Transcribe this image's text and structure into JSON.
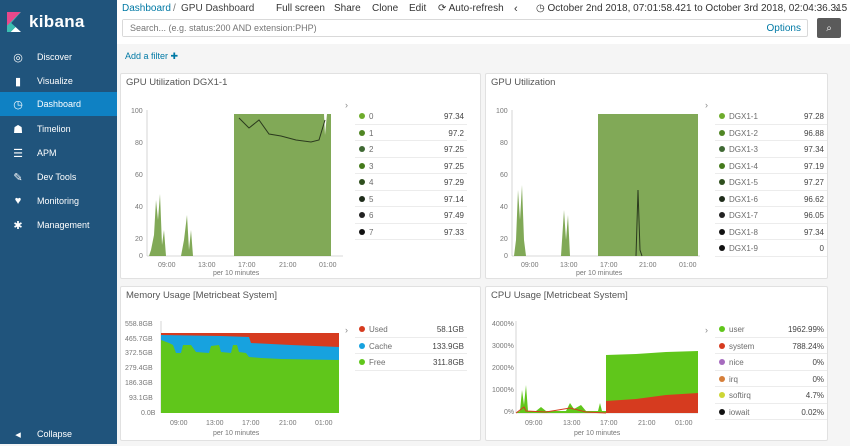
{
  "app": {
    "name": "kibana"
  },
  "sidebar": {
    "items": [
      {
        "label": "Discover",
        "icon": "compass-icon",
        "glyph": "◎"
      },
      {
        "label": "Visualize",
        "icon": "bar-chart-icon",
        "glyph": "▮"
      },
      {
        "label": "Dashboard",
        "icon": "dashboard-icon",
        "glyph": "◷"
      },
      {
        "label": "Timelion",
        "icon": "timelion-icon",
        "glyph": "☗"
      },
      {
        "label": "APM",
        "icon": "apm-icon",
        "glyph": "☰"
      },
      {
        "label": "Dev Tools",
        "icon": "wrench-icon",
        "glyph": "✎"
      },
      {
        "label": "Monitoring",
        "icon": "heartbeat-icon",
        "glyph": "♥"
      },
      {
        "label": "Management",
        "icon": "gear-icon",
        "glyph": "✱"
      }
    ],
    "collapse_label": "Collapse",
    "collapse_glyph": "◂"
  },
  "topbar": {
    "breadcrumb_root": "Dashboard",
    "breadcrumb_sep": "/",
    "breadcrumb_current": "GPU Dashboard",
    "menu": {
      "fullscreen": "Full screen",
      "share": "Share",
      "clone": "Clone",
      "edit": "Edit",
      "autorefresh": "Auto-refresh"
    },
    "time_range": "October 2nd 2018, 07:01:58.421 to October 3rd 2018, 02:04:36.315"
  },
  "query": {
    "placeholder": "Search... (e.g. status:200 AND extension:PHP)",
    "options_label": "Options"
  },
  "filter": {
    "add_label": "Add a filter ✚"
  },
  "colors": {
    "sidebar": "#20547c",
    "active": "#0f81c3",
    "link": "#0079a5"
  },
  "panels": [
    {
      "title": "GPU Utilization DGX1-1",
      "legend": [
        {
          "name": "0",
          "value": "97.34",
          "color": "#6eac2c"
        },
        {
          "name": "1",
          "value": "97.2",
          "color": "#508624"
        },
        {
          "name": "2",
          "value": "97.25",
          "color": "#3f6833"
        },
        {
          "name": "3",
          "value": "97.25",
          "color": "#447a1b"
        },
        {
          "name": "4",
          "value": "97.29",
          "color": "#2f4f1e"
        },
        {
          "name": "5",
          "value": "97.14",
          "color": "#1f2c1a"
        },
        {
          "name": "6",
          "value": "97.49",
          "color": "#222"
        },
        {
          "name": "7",
          "value": "97.33",
          "color": "#111"
        }
      ],
      "chart_data": {
        "type": "area",
        "x_ticks": [
          "09:00",
          "13:00",
          "17:00",
          "21:00",
          "01:00"
        ],
        "y_ticks": [
          "0",
          "20",
          "40",
          "60",
          "80",
          "100"
        ],
        "xlabel": "per 10 minutes",
        "ylim": [
          0,
          100
        ]
      }
    },
    {
      "title": "GPU Utilization",
      "legend": [
        {
          "name": "DGX1-1",
          "value": "97.28",
          "color": "#6eac2c"
        },
        {
          "name": "DGX1-2",
          "value": "96.88",
          "color": "#508624"
        },
        {
          "name": "DGX1-3",
          "value": "97.34",
          "color": "#3f6833"
        },
        {
          "name": "DGX1-4",
          "value": "97.19",
          "color": "#447a1b"
        },
        {
          "name": "DGX1-5",
          "value": "97.27",
          "color": "#2f4f1e"
        },
        {
          "name": "DGX1-6",
          "value": "96.62",
          "color": "#1f2c1a"
        },
        {
          "name": "DGX1-7",
          "value": "96.05",
          "color": "#222"
        },
        {
          "name": "DGX1-8",
          "value": "97.34",
          "color": "#111"
        },
        {
          "name": "DGX1-9",
          "value": "0",
          "color": "#111"
        }
      ],
      "chart_data": {
        "type": "area",
        "x_ticks": [
          "09:00",
          "13:00",
          "17:00",
          "21:00",
          "01:00"
        ],
        "y_ticks": [
          "0",
          "20",
          "40",
          "60",
          "80",
          "100"
        ],
        "xlabel": "per 10 minutes",
        "ylim": [
          0,
          100
        ]
      }
    },
    {
      "title": "Memory Usage [Metricbeat System]",
      "legend": [
        {
          "name": "Used",
          "value": "58.1GB",
          "color": "#d63b1f"
        },
        {
          "name": "Cache",
          "value": "133.9GB",
          "color": "#17a2df"
        },
        {
          "name": "Free",
          "value": "311.8GB",
          "color": "#60c61b"
        }
      ],
      "chart_data": {
        "type": "area",
        "x_ticks": [
          "09:00",
          "13:00",
          "17:00",
          "21:00",
          "01:00"
        ],
        "y_ticks": [
          "0.0B",
          "93.1GB",
          "186.3GB",
          "279.4GB",
          "372.5GB",
          "465.7GB",
          "558.8GB"
        ],
        "xlabel": "per 10 minutes"
      }
    },
    {
      "title": "CPU Usage [Metricbeat System]",
      "legend": [
        {
          "name": "user",
          "value": "1962.99%",
          "color": "#60c61b"
        },
        {
          "name": "system",
          "value": "788.24%",
          "color": "#d63b1f"
        },
        {
          "name": "nice",
          "value": "0%",
          "color": "#a66bbe"
        },
        {
          "name": "irq",
          "value": "0%",
          "color": "#d67f3a"
        },
        {
          "name": "softirq",
          "value": "4.7%",
          "color": "#cdd635"
        },
        {
          "name": "iowait",
          "value": "0.02%",
          "color": "#111"
        }
      ],
      "chart_data": {
        "type": "area",
        "x_ticks": [
          "09:00",
          "13:00",
          "17:00",
          "21:00",
          "01:00"
        ],
        "y_ticks": [
          "0%",
          "1000%",
          "2000%",
          "3000%",
          "4000%"
        ],
        "xlabel": "per 10 minutes"
      }
    }
  ]
}
